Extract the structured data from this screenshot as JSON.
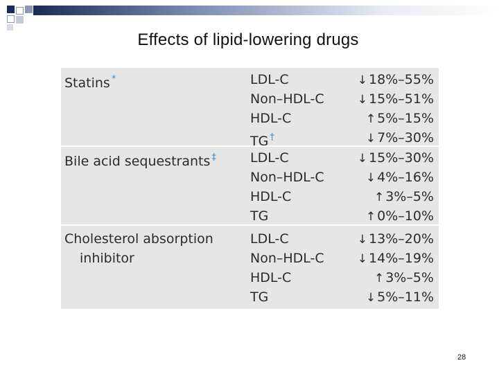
{
  "slide": {
    "title": "Effects of lipid-lowering drugs",
    "page_number": "28",
    "colors": {
      "title_bar": "#1e2a55",
      "table_bg": "#e6e6e6",
      "footnote_mark": "#3f8fc9"
    }
  },
  "table": {
    "groups": [
      {
        "name_lines": [
          "Statins"
        ],
        "footnote": "*",
        "rows": [
          {
            "marker": "LDL-C",
            "marker_note": "",
            "arrow": "↓",
            "range": "18%–55%"
          },
          {
            "marker": "Non–HDL-C",
            "marker_note": "",
            "arrow": "↓",
            "range": "15%–51%"
          },
          {
            "marker": "HDL-C",
            "marker_note": "",
            "arrow": "↑",
            "range": "5%–15%"
          },
          {
            "marker": "TG",
            "marker_note": "†",
            "arrow": "↓",
            "range": "7%–30%"
          }
        ]
      },
      {
        "name_lines": [
          "Bile acid sequestrants"
        ],
        "footnote": "‡",
        "rows": [
          {
            "marker": "LDL-C",
            "marker_note": "",
            "arrow": "↓",
            "range": "15%–30%"
          },
          {
            "marker": "Non–HDL-C",
            "marker_note": "",
            "arrow": "↓",
            "range": "4%–16%"
          },
          {
            "marker": "HDL-C",
            "marker_note": "",
            "arrow": "↑",
            "range": "3%–5%"
          },
          {
            "marker": "TG",
            "marker_note": "",
            "arrow": "↑",
            "range": "0%–10%"
          }
        ]
      },
      {
        "name_lines": [
          "Cholesterol absorption",
          "inhibitor"
        ],
        "footnote": "",
        "rows": [
          {
            "marker": "LDL-C",
            "marker_note": "",
            "arrow": "↓",
            "range": "13%–20%"
          },
          {
            "marker": "Non–HDL-C",
            "marker_note": "",
            "arrow": "↓",
            "range": "14%–19%"
          },
          {
            "marker": "HDL-C",
            "marker_note": "",
            "arrow": "↑",
            "range": "3%–5%"
          },
          {
            "marker": "TG",
            "marker_note": "",
            "arrow": "↓",
            "range": "5%–11%"
          }
        ]
      }
    ]
  }
}
